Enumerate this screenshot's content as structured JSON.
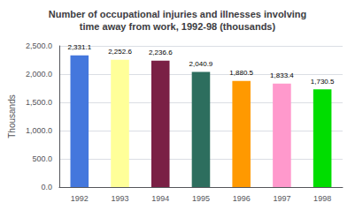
{
  "chart_data": {
    "type": "bar",
    "title": "Number of occupational injuries and illnesses involving\ntime away from work, 1992-98 (thousands)",
    "categories": [
      "1992",
      "1993",
      "1994",
      "1995",
      "1996",
      "1997",
      "1998"
    ],
    "values": [
      2331.1,
      2252.6,
      2236.6,
      2040.9,
      1880.5,
      1833.4,
      1730.5
    ],
    "value_labels": [
      "2,331.1",
      "2,252.6",
      "2,236.6",
      "2,040.9",
      "1,880.5",
      "1,833.4",
      "1,730.5"
    ],
    "data_labels": true,
    "colors": [
      "#4477dd",
      "#ffff99",
      "#7a2045",
      "#2d6e5e",
      "#ff9900",
      "#ff99cc",
      "#00dd00"
    ],
    "ylabel": "Thousands",
    "ylim": [
      0,
      2500
    ],
    "yticks": [
      {
        "value": 0,
        "label": "0.0"
      },
      {
        "value": 500,
        "label": "500.0"
      },
      {
        "value": 1000,
        "label": "1,000.0"
      },
      {
        "value": 1500,
        "label": "1,500.0"
      },
      {
        "value": 2000,
        "label": "2,000.0"
      },
      {
        "value": 2500,
        "label": "2,500.0"
      }
    ],
    "grid": true
  }
}
